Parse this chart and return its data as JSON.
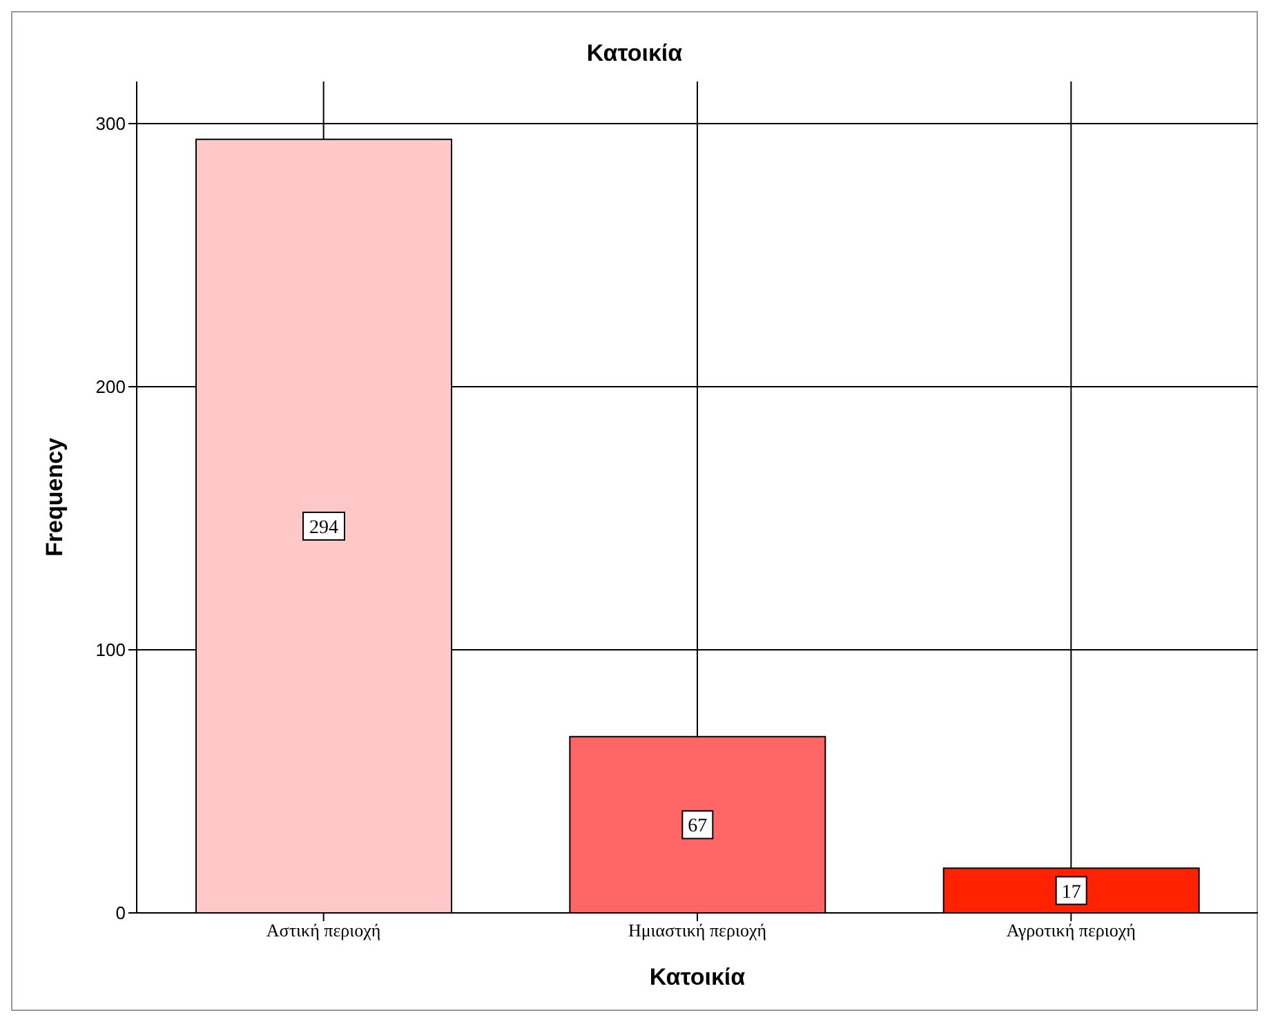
{
  "chart_data": {
    "type": "bar",
    "title": "Κατοικία",
    "xlabel": "Κατοικία",
    "ylabel": "Frequency",
    "categories": [
      "Αστική περιοχή",
      "Ημιαστική περιοχή",
      "Αγροτική περιοχή"
    ],
    "values": [
      294,
      67,
      17
    ],
    "colors": [
      "#ffc8c8",
      "#ff6666",
      "#ff2200"
    ],
    "ylim": [
      0,
      316
    ],
    "yticks": [
      0,
      100,
      200,
      300
    ],
    "grid": true,
    "data_labels": true
  }
}
